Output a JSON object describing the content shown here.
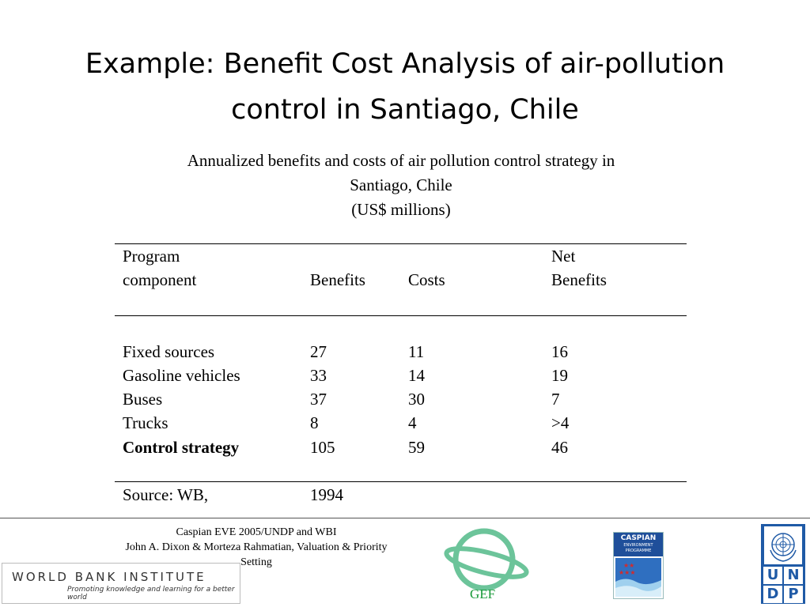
{
  "title": {
    "line1": "Example: Benefit Cost Analysis of air-pollution",
    "line2": "control in Santiago, Chile"
  },
  "subtitle": {
    "line1": "Annualized benefits and costs of air pollution control strategy in",
    "line2": "Santiago, Chile",
    "line3": "(US$ millions)"
  },
  "table": {
    "headers": {
      "program_line1": "Program",
      "program_line2": "component",
      "benefits": "Benefits",
      "costs": "Costs",
      "net_line1": "Net",
      "net_line2": "Benefits"
    },
    "rows": [
      {
        "component": "Fixed sources",
        "benefits": "27",
        "costs": "11",
        "net": "16"
      },
      {
        "component": "Gasoline vehicles",
        "benefits": "33",
        "costs": "14",
        "net": "19"
      },
      {
        "component": "Buses",
        "benefits": "37",
        "costs": "30",
        "net": "7"
      },
      {
        "component": "Trucks",
        "benefits": "8",
        "costs": "4",
        "net": ">4"
      },
      {
        "component": "Control strategy",
        "benefits": "105",
        "costs": "59",
        "net": "46"
      }
    ],
    "source_label": "Source:  WB,",
    "source_year": "1994"
  },
  "footer": {
    "credit_line1": "Caspian EVE 2005/UNDP and WBI",
    "credit_line2": "John A. Dixon & Morteza Rahmatian, Valuation & Priority",
    "credit_line3": "Setting",
    "wbi_name": "WORLD BANK INSTITUTE",
    "wbi_tagline": "Promoting knowledge and learning for a better world",
    "gef_label": "GEF",
    "caspian_line1": "CASPIAN",
    "caspian_line2": "ENVIRONMENT",
    "caspian_line3": "PROGRAMME",
    "undp_letters": [
      "U",
      "N",
      "D",
      "P"
    ]
  },
  "colors": {
    "gef_green": "#1a9a3a",
    "gef_ring": "#6cc49a",
    "undp_blue": "#1f5aa6",
    "caspian_blue": "#1f4f9a",
    "caspian_red": "#d42a2a"
  }
}
